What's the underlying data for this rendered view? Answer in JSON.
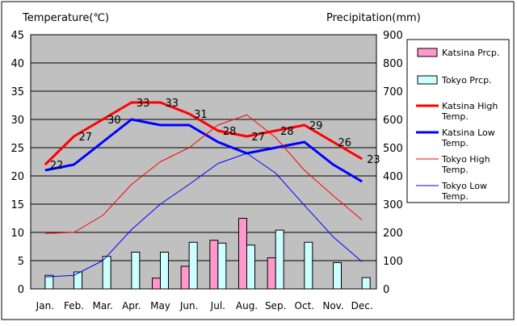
{
  "chart_data": {
    "type": "combo-bar-line",
    "left_axis_label": "Temperature(℃)",
    "right_axis_label": "Precipitation(mm)",
    "left_axis": {
      "min": 0,
      "max": 45,
      "step": 5
    },
    "right_axis": {
      "min": 0,
      "max": 900,
      "step": 100
    },
    "categories": [
      "Jan.",
      "Feb.",
      "Mar.",
      "Apr.",
      "May",
      "Jun.",
      "Jul.",
      "Aug.",
      "Sep.",
      "Oct.",
      "Nov.",
      "Dec."
    ],
    "bars": [
      {
        "name": "Katsina Prcp.",
        "color": "#ff99cc",
        "values": [
          0,
          0,
          0,
          0,
          38,
          80,
          172,
          250,
          110,
          0,
          0,
          0
        ]
      },
      {
        "name": "Tokyo Prcp.",
        "color": "#ccffff",
        "values": [
          48,
          60,
          115,
          130,
          130,
          165,
          162,
          155,
          208,
          165,
          93,
          40
        ]
      }
    ],
    "lines": [
      {
        "name": "Katsina High Temp.",
        "color": "#ff0000",
        "width": "thick",
        "values": [
          22,
          27,
          30,
          33,
          33,
          31,
          28,
          27,
          28,
          29,
          26,
          23
        ]
      },
      {
        "name": "Katsina Low Temp.",
        "color": "#0000ff",
        "width": "thick",
        "values": [
          21,
          22,
          26,
          30,
          29,
          29,
          26,
          24,
          25,
          26,
          22,
          19
        ]
      },
      {
        "name": "Tokyo High Temp.",
        "color": "#ff0000",
        "width": "thin",
        "values": [
          9.8,
          10,
          13,
          18.5,
          22.5,
          25,
          29,
          30.8,
          26.8,
          21,
          16.5,
          12.2
        ]
      },
      {
        "name": "Tokyo Low Temp.",
        "color": "#0000ff",
        "width": "thin",
        "values": [
          2.1,
          2.4,
          5,
          10.5,
          15,
          18.5,
          22.2,
          24,
          20.5,
          14.8,
          9.2,
          4.8
        ]
      }
    ],
    "data_labels": [
      22,
      27,
      30,
      33,
      33,
      31,
      28,
      27,
      28,
      29,
      26,
      23
    ],
    "legend_position": "right",
    "grid": true,
    "plot_background": "#c0c0c0"
  }
}
